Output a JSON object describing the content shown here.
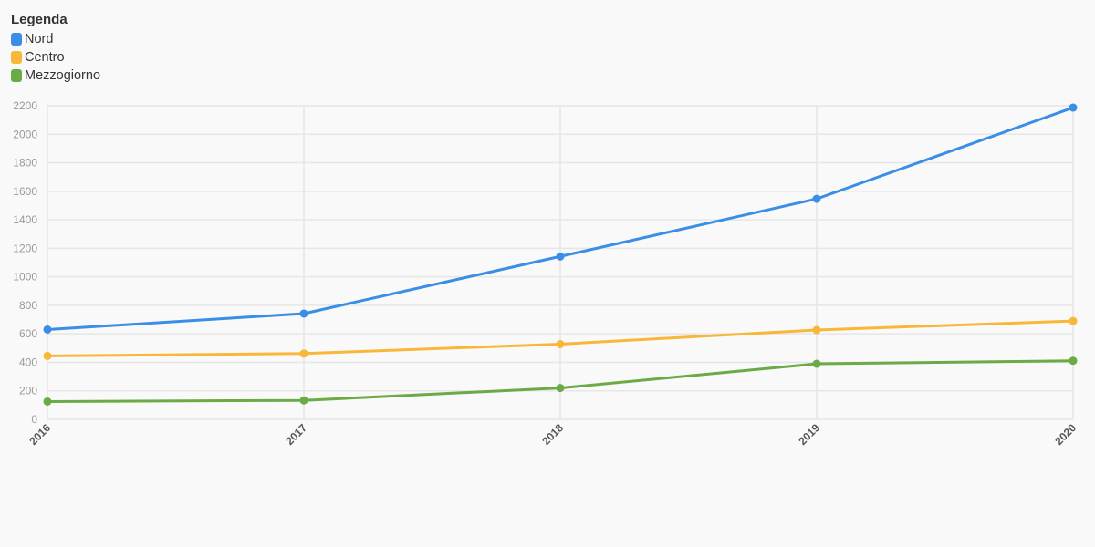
{
  "legend": {
    "title": "Legenda"
  },
  "chart_data": {
    "type": "line",
    "title": "",
    "xlabel": "",
    "ylabel": "",
    "x": [
      "2016",
      "2017",
      "2018",
      "2019",
      "2020"
    ],
    "ylim": [
      0,
      2200
    ],
    "yticks": [
      0,
      200,
      400,
      600,
      800,
      1000,
      1200,
      1400,
      1600,
      1800,
      2000,
      2200
    ],
    "grid": true,
    "legend_position": "top-left",
    "series": [
      {
        "name": "Nord",
        "color": "#3a8ee6",
        "values": [
          630,
          742,
          1143,
          1547,
          2187
        ]
      },
      {
        "name": "Centro",
        "color": "#f9b73a",
        "values": [
          445,
          462,
          528,
          627,
          690
        ]
      },
      {
        "name": "Mezzogiorno",
        "color": "#6aab45",
        "values": [
          125,
          133,
          220,
          390,
          411
        ]
      }
    ]
  }
}
